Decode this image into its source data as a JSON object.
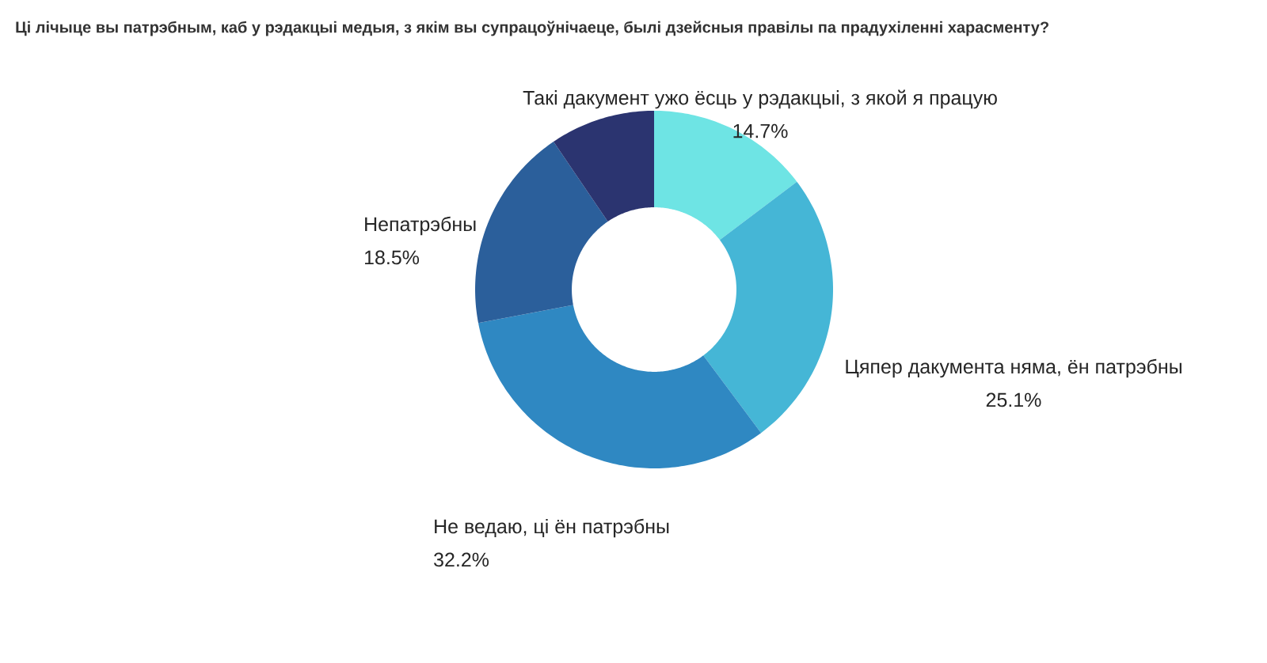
{
  "chart_data": {
    "type": "donut",
    "title": "Ці лічыце вы патрэбным, каб у рэдакцыі медыя, з якім вы супрацоўнічаеце, былі дзейсныя правілы па прадухіленні харасменту?",
    "categories": [
      "Такі дакумент ужо ёсць у рэдакцыі, з якой я працую",
      "Цяпер дакумента няма, ён патрэбны",
      "Не ведаю, ці ён патрэбны",
      "Непатрэбны",
      null
    ],
    "values": [
      14.7,
      25.1,
      32.2,
      18.5,
      9.5
    ],
    "colors": [
      "#6ee4e4",
      "#45b6d6",
      "#2f88c2",
      "#2b5f9b",
      "#2b3470"
    ],
    "value_labels": [
      "14.7%",
      "25.1%",
      "32.2%",
      "18.5%",
      null
    ]
  }
}
